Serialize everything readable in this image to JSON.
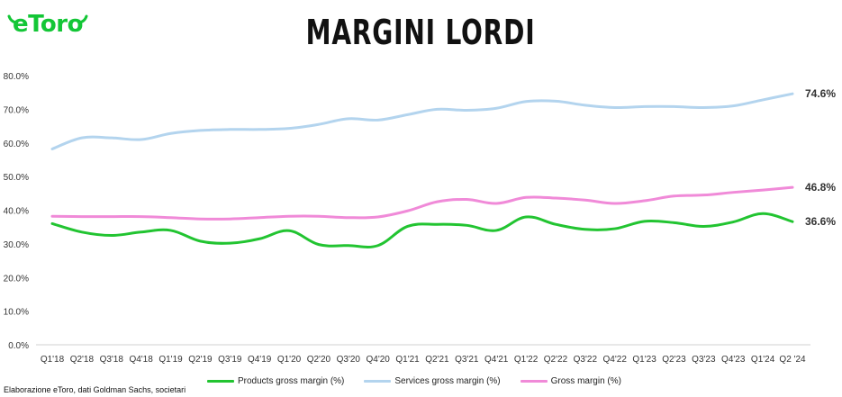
{
  "brand": {
    "logo_text": "eToro",
    "color": "#13c636"
  },
  "title": "MARGINI LORDI",
  "source": "Elaborazione eToro, dati Goldman Sachs, societari",
  "chart_data": {
    "type": "line",
    "title": "MARGINI LORDI",
    "categories": [
      "Q1'18",
      "Q2'18",
      "Q3'18",
      "Q4'18",
      "Q1'19",
      "Q2'19",
      "Q3'19",
      "Q4'19",
      "Q1'20",
      "Q2'20",
      "Q3'20",
      "Q4'20",
      "Q1'21",
      "Q2'21",
      "Q3'21",
      "Q4'21",
      "Q1'22",
      "Q2'22",
      "Q3'22",
      "Q4'22",
      "Q1'23",
      "Q2'23",
      "Q3'23",
      "Q4'23",
      "Q1'24",
      "Q2 '24"
    ],
    "y_ticks": [
      "0.0%",
      "10.0%",
      "20.0%",
      "30.0%",
      "40.0%",
      "50.0%",
      "60.0%",
      "70.0%",
      "80.0%"
    ],
    "ylim": [
      0,
      80
    ],
    "grid": false,
    "legend_position": "bottom",
    "series": [
      {
        "name": "Products gross margin (%)",
        "color": "#22c431",
        "values": [
          36.0,
          33.5,
          32.5,
          33.5,
          34.0,
          30.8,
          30.2,
          31.5,
          33.9,
          29.8,
          29.5,
          29.5,
          35.2,
          35.8,
          35.5,
          34.0,
          38.0,
          35.8,
          34.3,
          34.5,
          36.7,
          36.3,
          35.2,
          36.5,
          39.0,
          36.6
        ],
        "end_label": "36.6%"
      },
      {
        "name": "Services gross margin (%)",
        "color": "#b3d4ee",
        "values": [
          58.2,
          61.5,
          61.5,
          61.0,
          62.8,
          63.7,
          64.0,
          64.0,
          64.3,
          65.5,
          67.2,
          66.8,
          68.4,
          70.0,
          69.7,
          70.3,
          72.3,
          72.4,
          71.2,
          70.5,
          70.8,
          70.8,
          70.5,
          71.0,
          72.8,
          74.6
        ],
        "end_label": "74.6%"
      },
      {
        "name": "Gross margin (%)",
        "color": "#f08ad8",
        "values": [
          38.2,
          38.1,
          38.1,
          38.1,
          37.8,
          37.4,
          37.4,
          37.8,
          38.2,
          38.2,
          37.8,
          38.0,
          39.8,
          42.5,
          43.2,
          42.0,
          43.8,
          43.6,
          43.0,
          42.0,
          42.8,
          44.2,
          44.5,
          45.3,
          46.0,
          46.8
        ],
        "end_label": "46.8%"
      }
    ]
  }
}
